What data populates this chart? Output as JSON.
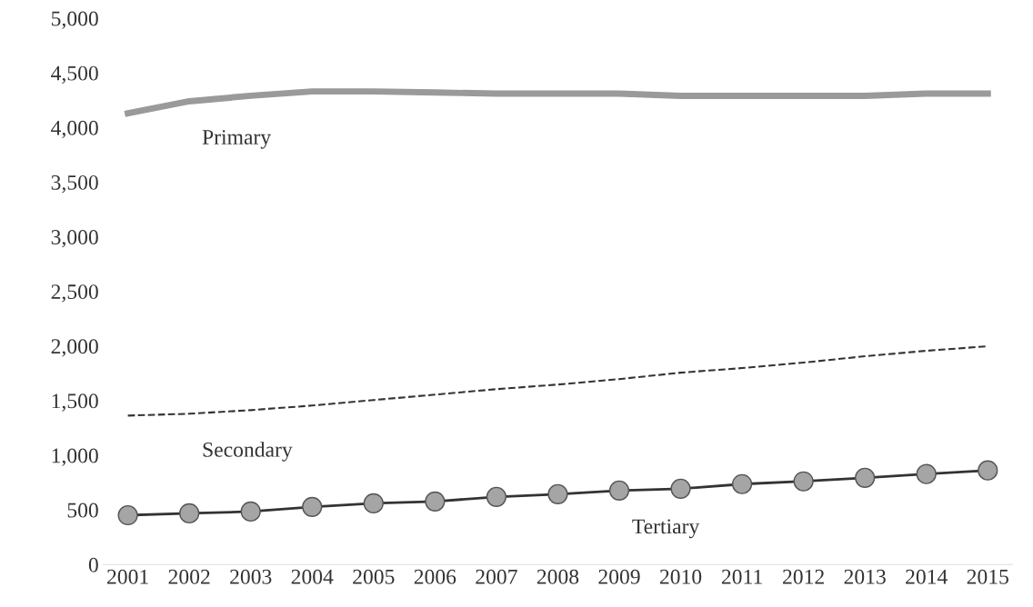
{
  "chart_data": {
    "type": "line",
    "categories": [
      "2001",
      "2002",
      "2003",
      "2004",
      "2005",
      "2006",
      "2007",
      "2008",
      "2009",
      "2010",
      "2011",
      "2012",
      "2013",
      "2014",
      "2015"
    ],
    "series": [
      {
        "name": "Primary",
        "color": "#9a9a9a",
        "line_style": "solid",
        "marker": "none",
        "values": [
          4130,
          4240,
          4290,
          4330,
          4330,
          4320,
          4310,
          4310,
          4310,
          4290,
          4290,
          4290,
          4290,
          4310,
          4310
        ]
      },
      {
        "name": "Secondary",
        "color": "#333333",
        "line_style": "dashed",
        "marker": "none",
        "values": [
          1363,
          1380,
          1413,
          1455,
          1505,
          1555,
          1605,
          1647,
          1697,
          1756,
          1798,
          1848,
          1906,
          1956,
          1998
        ]
      },
      {
        "name": "Tertiary",
        "color": "#333333",
        "line_style": "solid",
        "marker": "circle",
        "values": [
          451,
          468,
          485,
          527,
          560,
          577,
          619,
          644,
          677,
          694,
          736,
          761,
          794,
          828,
          861
        ]
      }
    ],
    "ylim": [
      0,
      5000
    ],
    "yticks": [
      {
        "value": 0,
        "label": "0"
      },
      {
        "value": 500,
        "label": "500"
      },
      {
        "value": 1000,
        "label": "1,000"
      },
      {
        "value": 1500,
        "label": "1,500"
      },
      {
        "value": 2000,
        "label": "2,000"
      },
      {
        "value": 2500,
        "label": "2,500"
      },
      {
        "value": 3000,
        "label": "3,000"
      },
      {
        "value": 3500,
        "label": "3,500"
      },
      {
        "value": 4000,
        "label": "4,000"
      },
      {
        "value": 4500,
        "label": "4,500"
      },
      {
        "value": 5000,
        "label": "5,000"
      }
    ],
    "grid": false,
    "legend": false
  }
}
